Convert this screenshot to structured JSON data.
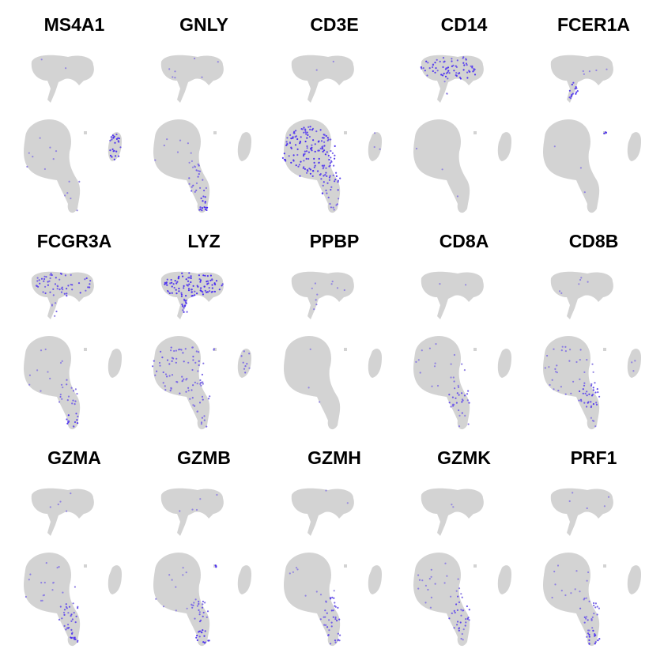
{
  "colors": {
    "background": "#ffffff",
    "low": "#d3d3d3",
    "high": "#4a2ef0"
  },
  "chart_data": {
    "type": "scatter",
    "description_of_axes": "",
    "layout": "3x5 feature plot grid",
    "shared_embedding_clusters": [
      "top_myeloid",
      "bottom_lymphoid",
      "right_small",
      "dot"
    ],
    "panels": [
      {
        "gene": "MS4A1",
        "expression": {
          "top_myeloid": 0.02,
          "myeloid_stem": 0.0,
          "bottom_main": 0.03,
          "bottom_tail": 0.03,
          "bottom_tip": 0.03,
          "right_small": 0.95,
          "dot": 0.0
        }
      },
      {
        "gene": "GNLY",
        "expression": {
          "top_myeloid": 0.05,
          "myeloid_stem": 0.0,
          "bottom_main": 0.05,
          "bottom_tail": 0.35,
          "bottom_tip": 0.95,
          "right_small": 0.02,
          "dot": 0.0
        }
      },
      {
        "gene": "CD3E",
        "expression": {
          "top_myeloid": 0.02,
          "myeloid_stem": 0.0,
          "bottom_main": 0.75,
          "bottom_tail": 0.6,
          "bottom_tip": 0.35,
          "right_small": 0.05,
          "dot": 0.0
        }
      },
      {
        "gene": "CD14",
        "expression": {
          "top_myeloid": 0.7,
          "myeloid_stem": 0.05,
          "bottom_main": 0.01,
          "bottom_tail": 0.01,
          "bottom_tip": 0.01,
          "right_small": 0.02,
          "dot": 0.0
        }
      },
      {
        "gene": "FCER1A",
        "expression": {
          "top_myeloid": 0.03,
          "myeloid_stem": 0.85,
          "bottom_main": 0.01,
          "bottom_tail": 0.01,
          "bottom_tip": 0.01,
          "right_small": 0.01,
          "dot": 0.9
        }
      },
      {
        "gene": "FCGR3A",
        "expression": {
          "top_myeloid": 0.55,
          "myeloid_stem": 0.2,
          "bottom_main": 0.05,
          "bottom_tail": 0.3,
          "bottom_tip": 0.75,
          "right_small": 0.02,
          "dot": 0.0
        }
      },
      {
        "gene": "LYZ",
        "expression": {
          "top_myeloid": 0.97,
          "myeloid_stem": 0.95,
          "bottom_main": 0.35,
          "bottom_tail": 0.3,
          "bottom_tip": 0.25,
          "right_small": 0.3,
          "dot": 0.3
        }
      },
      {
        "gene": "PPBP",
        "expression": {
          "top_myeloid": 0.05,
          "myeloid_stem": 0.1,
          "bottom_main": 0.01,
          "bottom_tail": 0.01,
          "bottom_tip": 0.01,
          "right_small": 0.01,
          "dot": 0.0
        }
      },
      {
        "gene": "CD8A",
        "expression": {
          "top_myeloid": 0.02,
          "myeloid_stem": 0.0,
          "bottom_main": 0.08,
          "bottom_tail": 0.45,
          "bottom_tip": 0.1,
          "right_small": 0.01,
          "dot": 0.0
        }
      },
      {
        "gene": "CD8B",
        "expression": {
          "top_myeloid": 0.04,
          "myeloid_stem": 0.0,
          "bottom_main": 0.15,
          "bottom_tail": 0.6,
          "bottom_tip": 0.15,
          "right_small": 0.05,
          "dot": 0.0
        }
      },
      {
        "gene": "GZMA",
        "expression": {
          "top_myeloid": 0.03,
          "myeloid_stem": 0.0,
          "bottom_main": 0.08,
          "bottom_tail": 0.5,
          "bottom_tip": 0.7,
          "right_small": 0.01,
          "dot": 0.0
        }
      },
      {
        "gene": "GZMB",
        "expression": {
          "top_myeloid": 0.03,
          "myeloid_stem": 0.0,
          "bottom_main": 0.05,
          "bottom_tail": 0.4,
          "bottom_tip": 0.9,
          "right_small": 0.01,
          "dot": 0.9
        }
      },
      {
        "gene": "GZMH",
        "expression": {
          "top_myeloid": 0.02,
          "myeloid_stem": 0.0,
          "bottom_main": 0.04,
          "bottom_tail": 0.5,
          "bottom_tip": 0.5,
          "right_small": 0.01,
          "dot": 0.0
        }
      },
      {
        "gene": "GZMK",
        "expression": {
          "top_myeloid": 0.02,
          "myeloid_stem": 0.0,
          "bottom_main": 0.1,
          "bottom_tail": 0.5,
          "bottom_tip": 0.15,
          "right_small": 0.01,
          "dot": 0.0
        }
      },
      {
        "gene": "PRF1",
        "expression": {
          "top_myeloid": 0.03,
          "myeloid_stem": 0.0,
          "bottom_main": 0.06,
          "bottom_tail": 0.4,
          "bottom_tip": 0.85,
          "right_small": 0.01,
          "dot": 0.0
        }
      }
    ]
  }
}
